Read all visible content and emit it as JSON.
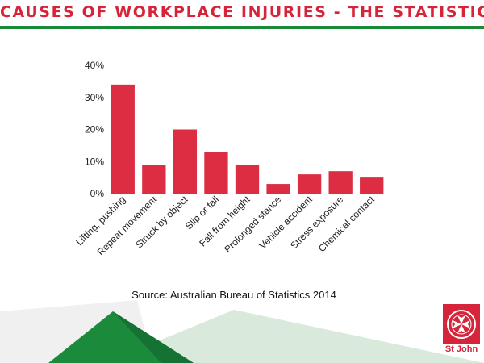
{
  "header": {
    "title": "CAUSES OF WORKPLACE INJURIES - THE STATISTICS"
  },
  "colors": {
    "accent": "#d6253a",
    "bar": "#dc2d43",
    "green": "#1b8a3a"
  },
  "chart_data": {
    "type": "bar",
    "categories": [
      "Lifting, pushing",
      "Repeat movement",
      "Struck by object",
      "Slip or fall",
      "Fall from height",
      "Prolonged stance",
      "Vehicle accident",
      "Stress exposure",
      "Chemical contact"
    ],
    "values": [
      34,
      9,
      20,
      13,
      9,
      3,
      6,
      7,
      5
    ],
    "ylim": [
      0,
      40
    ],
    "yticks": [
      "0%",
      "10%",
      "20%",
      "30%",
      "40%"
    ],
    "grid": false,
    "legend": "none"
  },
  "source": "Source: Australian Bureau of Statistics 2014",
  "logo": {
    "text": "St John"
  }
}
